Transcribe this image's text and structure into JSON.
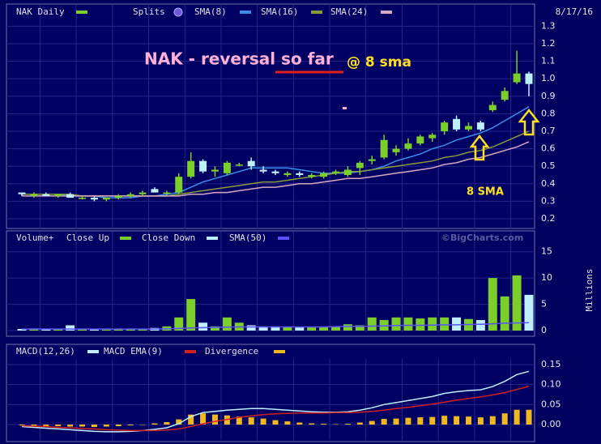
{
  "chart_data": [
    {
      "type": "candlestick",
      "title": "NAK Daily",
      "splits_label": "Splits",
      "date": "8/17/16",
      "annotations": [
        "NAK - reversal so far",
        "@ 8 sma",
        "8 SMA"
      ],
      "up_color": "#7ccf2a",
      "down_color": "#bfefff",
      "categories": [
        null,
        null,
        null,
        null,
        null,
        null,
        null,
        null,
        null,
        null,
        null,
        null,
        null,
        null,
        null,
        null,
        null,
        null,
        null,
        null,
        null,
        null,
        null,
        null,
        null,
        null,
        null,
        null,
        null,
        null,
        null,
        null,
        null,
        null,
        null,
        null,
        null,
        null,
        null,
        null,
        null,
        null,
        null
      ],
      "ohlc": [
        [
          0.35,
          0.35,
          0.33,
          0.34
        ],
        [
          0.33,
          0.35,
          0.32,
          0.34
        ],
        [
          0.34,
          0.35,
          0.33,
          0.33
        ],
        [
          0.33,
          0.34,
          0.32,
          0.34
        ],
        [
          0.34,
          0.35,
          0.32,
          0.32
        ],
        [
          0.32,
          0.33,
          0.31,
          0.32
        ],
        [
          0.32,
          0.33,
          0.3,
          0.31
        ],
        [
          0.31,
          0.32,
          0.3,
          0.32
        ],
        [
          0.32,
          0.34,
          0.31,
          0.33
        ],
        [
          0.33,
          0.35,
          0.32,
          0.34
        ],
        [
          0.34,
          0.36,
          0.33,
          0.35
        ],
        [
          0.37,
          0.38,
          0.35,
          0.35
        ],
        [
          0.35,
          0.36,
          0.33,
          0.35
        ],
        [
          0.35,
          0.46,
          0.34,
          0.44
        ],
        [
          0.44,
          0.58,
          0.43,
          0.53
        ],
        [
          0.53,
          0.54,
          0.46,
          0.47
        ],
        [
          0.47,
          0.5,
          0.44,
          0.48
        ],
        [
          0.46,
          0.53,
          0.45,
          0.52
        ],
        [
          0.51,
          0.52,
          0.5,
          0.51
        ],
        [
          0.53,
          0.55,
          0.48,
          0.5
        ],
        [
          0.48,
          0.5,
          0.46,
          0.47
        ],
        [
          0.47,
          0.48,
          0.45,
          0.46
        ],
        [
          0.45,
          0.47,
          0.44,
          0.46
        ],
        [
          0.46,
          0.47,
          0.44,
          0.45
        ],
        [
          0.44,
          0.46,
          0.43,
          0.45
        ],
        [
          0.44,
          0.47,
          0.43,
          0.46
        ],
        [
          0.46,
          0.48,
          0.45,
          0.47
        ],
        [
          0.45,
          0.5,
          0.44,
          0.48
        ],
        [
          0.49,
          0.53,
          0.45,
          0.52
        ],
        [
          0.53,
          0.56,
          0.51,
          0.54
        ],
        [
          0.55,
          0.68,
          0.54,
          0.65
        ],
        [
          0.58,
          0.62,
          0.56,
          0.6
        ],
        [
          0.6,
          0.66,
          0.59,
          0.63
        ],
        [
          0.63,
          0.68,
          0.62,
          0.67
        ],
        [
          0.66,
          0.69,
          0.64,
          0.68
        ],
        [
          0.7,
          0.76,
          0.68,
          0.75
        ],
        [
          0.77,
          0.79,
          0.7,
          0.71
        ],
        [
          0.71,
          0.75,
          0.7,
          0.73
        ],
        [
          0.75,
          0.76,
          0.7,
          0.71
        ],
        [
          0.82,
          0.87,
          0.81,
          0.85
        ],
        [
          0.88,
          0.95,
          0.87,
          0.93
        ],
        [
          0.98,
          1.16,
          0.97,
          1.03
        ],
        [
          1.03,
          1.04,
          0.9,
          0.97
        ]
      ],
      "series": [
        {
          "name": "SMA(8)",
          "color": "#3a8ee8",
          "values": [
            0.34,
            0.34,
            0.34,
            0.34,
            0.33,
            0.33,
            0.33,
            0.32,
            0.32,
            0.32,
            0.33,
            0.33,
            0.34,
            0.35,
            0.38,
            0.41,
            0.43,
            0.45,
            0.47,
            0.49,
            0.49,
            0.49,
            0.49,
            0.48,
            0.47,
            0.46,
            0.46,
            0.46,
            0.47,
            0.48,
            0.5,
            0.53,
            0.55,
            0.57,
            0.6,
            0.62,
            0.65,
            0.67,
            0.69,
            0.72,
            0.76,
            0.8,
            0.84
          ]
        },
        {
          "name": "SMA(16)",
          "color": "#8a9a3a",
          "values": [
            0.34,
            0.34,
            0.34,
            0.34,
            0.34,
            0.33,
            0.33,
            0.33,
            0.33,
            0.33,
            0.33,
            0.33,
            0.33,
            0.34,
            0.35,
            0.36,
            0.37,
            0.38,
            0.39,
            0.4,
            0.41,
            0.41,
            0.42,
            0.43,
            0.44,
            0.45,
            0.46,
            0.47,
            0.47,
            0.48,
            0.49,
            0.5,
            0.51,
            0.52,
            0.53,
            0.55,
            0.56,
            0.58,
            0.59,
            0.61,
            0.64,
            0.67,
            0.7
          ]
        },
        {
          "name": "SMA(24)",
          "color": "#d8a8c0",
          "values": [
            0.33,
            0.33,
            0.33,
            0.33,
            0.33,
            0.33,
            0.33,
            0.33,
            0.33,
            0.33,
            0.33,
            0.33,
            0.33,
            0.33,
            0.34,
            0.34,
            0.35,
            0.35,
            0.36,
            0.37,
            0.38,
            0.38,
            0.39,
            0.4,
            0.4,
            0.41,
            0.42,
            0.43,
            0.43,
            0.44,
            0.45,
            0.46,
            0.47,
            0.48,
            0.49,
            0.51,
            0.52,
            0.54,
            0.55,
            0.57,
            0.59,
            0.61,
            0.64
          ]
        }
      ],
      "ylim": [
        0.15,
        1.41
      ],
      "yticks": [
        0.2,
        0.3,
        0.4,
        0.5,
        0.6,
        0.7,
        0.8,
        0.9,
        {
          "value": 1,
          "label": "1.0"
        },
        1.1,
        1.2,
        1.3
      ]
    },
    {
      "type": "bar",
      "legend_label": "Volume+",
      "y_label": "Millions",
      "watermark": "©BigCharts.com",
      "series": [
        {
          "name": "Close Up",
          "color": "#7ccf2a",
          "values": [
            null,
            0.4,
            null,
            0.3,
            null,
            0.3,
            null,
            0.2,
            0.3,
            0.3,
            0.3,
            null,
            0.8,
            2.5,
            6.0,
            null,
            0.8,
            2.5,
            1.5,
            null,
            null,
            null,
            0.7,
            null,
            0.6,
            0.7,
            0.8,
            1.2,
            1.0,
            2.5,
            2.0,
            2.5,
            2.5,
            2.3,
            2.5,
            2.5,
            null,
            2.2,
            null,
            10.0,
            6.5,
            10.5,
            null
          ]
        },
        {
          "name": "Close Down",
          "color": "#bfefff",
          "values": [
            0.3,
            null,
            0.3,
            null,
            1.0,
            null,
            0.2,
            null,
            null,
            null,
            null,
            0.5,
            null,
            null,
            null,
            1.5,
            null,
            null,
            null,
            1.0,
            0.8,
            0.8,
            null,
            0.6,
            null,
            null,
            null,
            null,
            null,
            null,
            null,
            null,
            null,
            null,
            null,
            null,
            2.5,
            null,
            2.0,
            null,
            null,
            null,
            6.8
          ]
        },
        {
          "name": "SMA(50)",
          "color": "#5a50ff",
          "type": "line",
          "values": [
            0.3,
            0.3,
            0.3,
            0.3,
            0.3,
            0.3,
            0.3,
            0.3,
            0.3,
            0.3,
            0.3,
            0.3,
            0.35,
            0.4,
            0.5,
            0.55,
            0.6,
            0.65,
            0.7,
            0.7,
            0.7,
            0.7,
            0.7,
            0.7,
            0.7,
            0.7,
            0.75,
            0.8,
            0.8,
            0.85,
            0.9,
            0.95,
            1.0,
            1.0,
            1.05,
            1.1,
            1.1,
            1.15,
            1.2,
            1.3,
            1.4,
            1.45,
            1.5
          ]
        }
      ],
      "ylim": [
        0,
        18.5
      ],
      "yticks": [
        0,
        5,
        10,
        15
      ]
    },
    {
      "type": "macd",
      "series": [
        {
          "name": "MACD(12,26)",
          "color": "#bfefff",
          "type": "line",
          "values": [
            -0.005,
            -0.007,
            -0.009,
            -0.011,
            -0.013,
            -0.015,
            -0.017,
            -0.018,
            -0.018,
            -0.017,
            -0.015,
            -0.012,
            -0.008,
            0.002,
            0.02,
            0.03,
            0.033,
            0.036,
            0.038,
            0.04,
            0.04,
            0.038,
            0.036,
            0.034,
            0.032,
            0.031,
            0.031,
            0.032,
            0.036,
            0.042,
            0.05,
            0.055,
            0.06,
            0.065,
            0.07,
            0.078,
            0.082,
            0.085,
            0.087,
            0.095,
            0.108,
            0.125,
            0.133
          ]
        },
        {
          "name": "MACD EMA(9)",
          "color": "#d02020",
          "type": "line",
          "values": [
            -0.003,
            -0.004,
            -0.005,
            -0.007,
            -0.008,
            -0.01,
            -0.011,
            -0.013,
            -0.014,
            -0.015,
            -0.015,
            -0.015,
            -0.014,
            -0.011,
            -0.005,
            0.002,
            0.008,
            0.013,
            0.018,
            0.022,
            0.025,
            0.027,
            0.028,
            0.029,
            0.029,
            0.029,
            0.03,
            0.03,
            0.031,
            0.033,
            0.036,
            0.04,
            0.043,
            0.047,
            0.051,
            0.056,
            0.061,
            0.065,
            0.069,
            0.074,
            0.08,
            0.088,
            0.096
          ]
        },
        {
          "name": "Divergence",
          "color": "#f0b820",
          "type": "bar",
          "values": [
            -0.002,
            -0.003,
            -0.004,
            -0.004,
            -0.005,
            -0.005,
            -0.006,
            -0.005,
            -0.004,
            -0.002,
            0,
            0.003,
            0.006,
            0.013,
            0.025,
            0.028,
            0.025,
            0.023,
            0.02,
            0.018,
            0.015,
            0.011,
            0.008,
            0.005,
            0.003,
            0.002,
            0.001,
            0.002,
            0.005,
            0.009,
            0.014,
            0.015,
            0.017,
            0.018,
            0.019,
            0.022,
            0.021,
            0.02,
            0.018,
            0.021,
            0.028,
            0.037,
            0.037
          ]
        }
      ],
      "ylim": [
        -0.035,
        0.16
      ],
      "yticks": [
        {
          "value": 0,
          "label": "0.00"
        },
        0.05,
        {
          "value": 0.1,
          "label": "0.10"
        },
        0.15
      ]
    }
  ]
}
